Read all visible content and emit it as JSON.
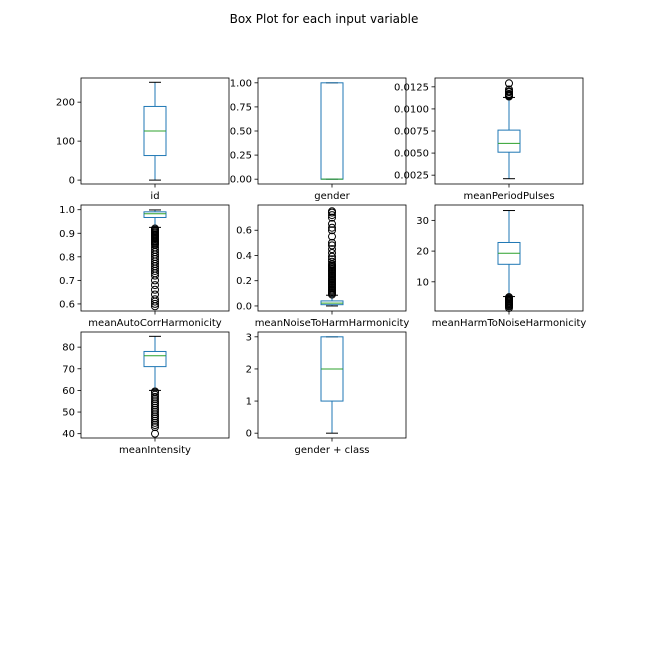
{
  "figure": {
    "title": "Box Plot for each input variable"
  },
  "colors": {
    "box": "#1f77b4",
    "median": "#2ca02c",
    "outlier": "#000000",
    "frame": "#000000"
  },
  "chart_data": [
    {
      "type": "box",
      "xlabel": "id",
      "ylim": [
        -10,
        262
      ],
      "yticks": [
        0,
        100,
        200
      ],
      "ytick_labels": [
        "0",
        "100",
        "200"
      ],
      "whisker_low": 0,
      "q1": 63,
      "median": 126,
      "q3": 189,
      "whisker_high": 251,
      "outliers": []
    },
    {
      "type": "box",
      "xlabel": "gender",
      "ylim": [
        -0.05,
        1.05
      ],
      "yticks": [
        0,
        0.25,
        0.5,
        0.75,
        1.0
      ],
      "ytick_labels": [
        "0.00",
        "0.25",
        "0.50",
        "0.75",
        "1.00"
      ],
      "whisker_low": 0,
      "q1": 0,
      "median": 0,
      "q3": 1,
      "whisker_high": 1,
      "outliers": []
    },
    {
      "type": "box",
      "xlabel": "meanPeriodPulses",
      "ylim": [
        0.0015,
        0.0135
      ],
      "yticks": [
        0.0025,
        0.005,
        0.0075,
        0.01,
        0.0125
      ],
      "ytick_labels": [
        "0.0025",
        "0.0050",
        "0.0075",
        "0.0100",
        "0.0125"
      ],
      "whisker_low": 0.0021,
      "q1": 0.0051,
      "median": 0.0061,
      "q3": 0.0076,
      "whisker_high": 0.0113,
      "outliers": [
        0.0114,
        0.0115,
        0.0116,
        0.0117,
        0.0119,
        0.012,
        0.0122,
        0.0129
      ]
    },
    {
      "type": "box",
      "xlabel": "meanAutoCorrHarmonicity",
      "ylim": [
        0.57,
        1.02
      ],
      "yticks": [
        0.6,
        0.7,
        0.8,
        0.9,
        1.0
      ],
      "ytick_labels": [
        "0.6",
        "0.7",
        "0.8",
        "0.9",
        "1.0"
      ],
      "whisker_low": 0.925,
      "q1": 0.967,
      "median": 0.983,
      "q3": 0.991,
      "whisker_high": 0.999,
      "outliers": [
        0.59,
        0.6,
        0.61,
        0.62,
        0.64,
        0.66,
        0.68,
        0.7,
        0.72,
        0.73,
        0.74,
        0.75,
        0.76,
        0.77,
        0.78,
        0.79,
        0.8,
        0.81,
        0.82,
        0.83,
        0.84,
        0.85,
        0.855,
        0.86,
        0.865,
        0.87,
        0.875,
        0.88,
        0.885,
        0.89,
        0.895,
        0.9,
        0.905,
        0.91,
        0.915,
        0.92
      ]
    },
    {
      "type": "box",
      "xlabel": "meanNoiseToHarmHarmonicity",
      "ylim": [
        -0.04,
        0.8
      ],
      "yticks": [
        0,
        0.2,
        0.4,
        0.6
      ],
      "ytick_labels": [
        "0.0",
        "0.2",
        "0.4",
        "0.6"
      ],
      "whisker_low": 0.0,
      "q1": 0.01,
      "median": 0.022,
      "q3": 0.04,
      "whisker_high": 0.085,
      "outliers": [
        0.09,
        0.1,
        0.11,
        0.12,
        0.13,
        0.14,
        0.15,
        0.16,
        0.17,
        0.18,
        0.19,
        0.2,
        0.21,
        0.22,
        0.23,
        0.24,
        0.25,
        0.26,
        0.27,
        0.28,
        0.29,
        0.3,
        0.31,
        0.32,
        0.33,
        0.35,
        0.37,
        0.39,
        0.42,
        0.45,
        0.48,
        0.5,
        0.55,
        0.6,
        0.62,
        0.65,
        0.7,
        0.72,
        0.74,
        0.75
      ]
    },
    {
      "type": "box",
      "xlabel": "meanHarmToNoiseHarmonicity",
      "ylim": [
        0.5,
        35
      ],
      "yticks": [
        10,
        20,
        30
      ],
      "ytick_labels": [
        "10",
        "20",
        "30"
      ],
      "whisker_low": 5.2,
      "q1": 15.7,
      "median": 19.3,
      "q3": 22.8,
      "whisker_high": 33.2,
      "outliers": [
        1.5,
        2.0,
        2.3,
        2.6,
        2.9,
        3.2,
        3.5,
        3.8,
        4.1,
        4.4,
        4.7,
        5.0
      ]
    },
    {
      "type": "box",
      "xlabel": "meanIntensity",
      "ylim": [
        38,
        87
      ],
      "yticks": [
        40,
        50,
        60,
        70,
        80
      ],
      "ytick_labels": [
        "40",
        "50",
        "60",
        "70",
        "80"
      ],
      "whisker_low": 60,
      "q1": 71,
      "median": 76,
      "q3": 78,
      "whisker_high": 85,
      "outliers": [
        40,
        43,
        44,
        45,
        46,
        47,
        48,
        49,
        50,
        51,
        52,
        53,
        54,
        55,
        56,
        57,
        58,
        59,
        59.5
      ]
    },
    {
      "type": "box",
      "xlabel": "gender + class",
      "ylim": [
        -0.15,
        3.15
      ],
      "yticks": [
        0,
        1,
        2,
        3
      ],
      "ytick_labels": [
        "0",
        "1",
        "2",
        "3"
      ],
      "whisker_low": 0,
      "q1": 1,
      "median": 2,
      "q3": 3,
      "whisker_high": 3,
      "outliers": []
    }
  ]
}
